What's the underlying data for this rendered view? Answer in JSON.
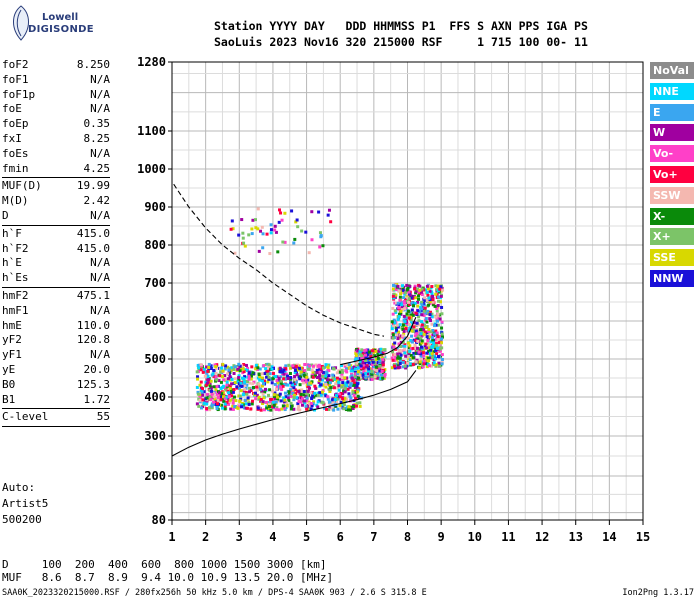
{
  "logo": {
    "line1": "Lowell",
    "line2": "DIGISONDE"
  },
  "header": {
    "line1": "Station YYYY DAY   DDD HHMMSS P1  FFS S AXN PPS IGA PS",
    "line2": "SaoLuis 2023 Nov16 320 215000 RSF     1 715 100 00- 11"
  },
  "params": [
    {
      "k": "foF2",
      "v": "8.250"
    },
    {
      "k": "foF1",
      "v": "N/A"
    },
    {
      "k": "foF1p",
      "v": "N/A"
    },
    {
      "k": "foE",
      "v": "N/A"
    },
    {
      "k": "foEp",
      "v": "0.35"
    },
    {
      "k": "fxI",
      "v": "8.25"
    },
    {
      "k": "foEs",
      "v": "N/A"
    },
    {
      "k": "fmin",
      "v": "4.25"
    },
    {
      "sep": true
    },
    {
      "k": "MUF(D)",
      "v": "19.99"
    },
    {
      "k": "M(D)",
      "v": "2.42"
    },
    {
      "k": "D",
      "v": "N/A"
    },
    {
      "sep": true
    },
    {
      "k": "h`F",
      "v": "415.0"
    },
    {
      "k": "h`F2",
      "v": "415.0"
    },
    {
      "k": "h`E",
      "v": "N/A"
    },
    {
      "k": "h`Es",
      "v": "N/A"
    },
    {
      "sep": true
    },
    {
      "k": "hmF2",
      "v": "475.1"
    },
    {
      "k": "hmF1",
      "v": "N/A"
    },
    {
      "k": "hmE",
      "v": "110.0"
    },
    {
      "k": "yF2",
      "v": "120.8"
    },
    {
      "k": "yF1",
      "v": "N/A"
    },
    {
      "k": "yE",
      "v": "20.0"
    },
    {
      "k": "B0",
      "v": "125.3"
    },
    {
      "k": "B1",
      "v": "1.72"
    },
    {
      "sep": true
    },
    {
      "k": "C-level",
      "v": "55"
    },
    {
      "sep": true
    }
  ],
  "auto": {
    "label": "Auto:",
    "artist": "Artist5",
    "version": "500200"
  },
  "dmuf": {
    "d_row": "D     100  200  400  600  800 1000 1500 3000 [km]",
    "muf_row": "MUF   8.6  8.7  8.9  9.4 10.0 10.9 13.5 20.0 [MHz]"
  },
  "footer": {
    "left": "SAA0K_2023320215000.RSF / 280fx256h 50 kHz 5.0 km / DPS-4 SAA0K 903 / 2.6 S 315.8 E",
    "right": "Ion2Png 1.3.17"
  },
  "legend": [
    {
      "label": "NoVal",
      "color": "#8c8c8c"
    },
    {
      "label": "NNE",
      "color": "#00d8ff"
    },
    {
      "label": "E",
      "color": "#3aa6f0"
    },
    {
      "label": "W",
      "color": "#a000a0"
    },
    {
      "label": "Vo-",
      "color": "#ff40c8"
    },
    {
      "label": "Vo+",
      "color": "#ff0040"
    },
    {
      "label": "SSW",
      "color": "#f4b8b0"
    },
    {
      "label": "X-",
      "color": "#0a8a0a"
    },
    {
      "label": "X+",
      "color": "#7cc468"
    },
    {
      "label": "SSE",
      "color": "#d8d800"
    },
    {
      "label": "NNW",
      "color": "#1a10d8"
    }
  ],
  "chart_data": {
    "type": "scatter",
    "title": "",
    "xlabel": "",
    "ylabel": "",
    "xlim": [
      1,
      15
    ],
    "ylim": [
      80,
      1280
    ],
    "x_ticks": [
      "1",
      "2",
      "3",
      "4",
      "5",
      "6",
      "7",
      "8",
      "9",
      "10",
      "11",
      "12",
      "13",
      "14",
      "15"
    ],
    "y_ticks": [
      "80",
      "200",
      "300",
      "400",
      "500",
      "600",
      "700",
      "800",
      "900",
      "1000",
      "1100",
      "1280"
    ],
    "grid": true,
    "ordinary_clusters": [
      {
        "x": [
          1.7,
          6.6
        ],
        "y": [
          370,
          490
        ],
        "weight": 1.0
      },
      {
        "x": [
          6.4,
          7.3
        ],
        "y": [
          450,
          530
        ],
        "weight": 0.7
      },
      {
        "x": [
          7.5,
          9.0
        ],
        "y": [
          480,
          700
        ],
        "weight": 0.9
      }
    ],
    "sparse_clusters": [
      {
        "x": [
          2.7,
          5.7
        ],
        "y": [
          780,
          900
        ],
        "weight": 0.3
      }
    ],
    "dashed_curve": [
      [
        1.05,
        960
      ],
      [
        1.5,
        900
      ],
      [
        2.0,
        845
      ],
      [
        2.5,
        800
      ],
      [
        3.0,
        765
      ],
      [
        3.5,
        735
      ],
      [
        4.0,
        700
      ],
      [
        4.5,
        670
      ],
      [
        5.0,
        640
      ],
      [
        5.5,
        615
      ],
      [
        6.0,
        595
      ],
      [
        6.5,
        580
      ],
      [
        7.0,
        565
      ],
      [
        7.3,
        560
      ]
    ],
    "solid_curve_lower": [
      [
        1.0,
        250
      ],
      [
        1.5,
        272
      ],
      [
        2.0,
        290
      ],
      [
        2.5,
        305
      ],
      [
        3.0,
        318
      ],
      [
        3.5,
        330
      ],
      [
        4.0,
        342
      ],
      [
        4.5,
        353
      ],
      [
        5.0,
        363
      ],
      [
        5.5,
        373
      ],
      [
        6.0,
        383
      ],
      [
        6.5,
        393
      ],
      [
        7.0,
        405
      ],
      [
        7.5,
        420
      ],
      [
        8.0,
        440
      ],
      [
        8.25,
        470
      ]
    ],
    "profile_curve": [
      [
        6.0,
        485
      ],
      [
        6.5,
        495
      ],
      [
        7.0,
        505
      ],
      [
        7.4,
        515
      ],
      [
        7.7,
        530
      ],
      [
        8.0,
        560
      ],
      [
        8.2,
        600
      ],
      [
        8.25,
        610
      ]
    ]
  }
}
